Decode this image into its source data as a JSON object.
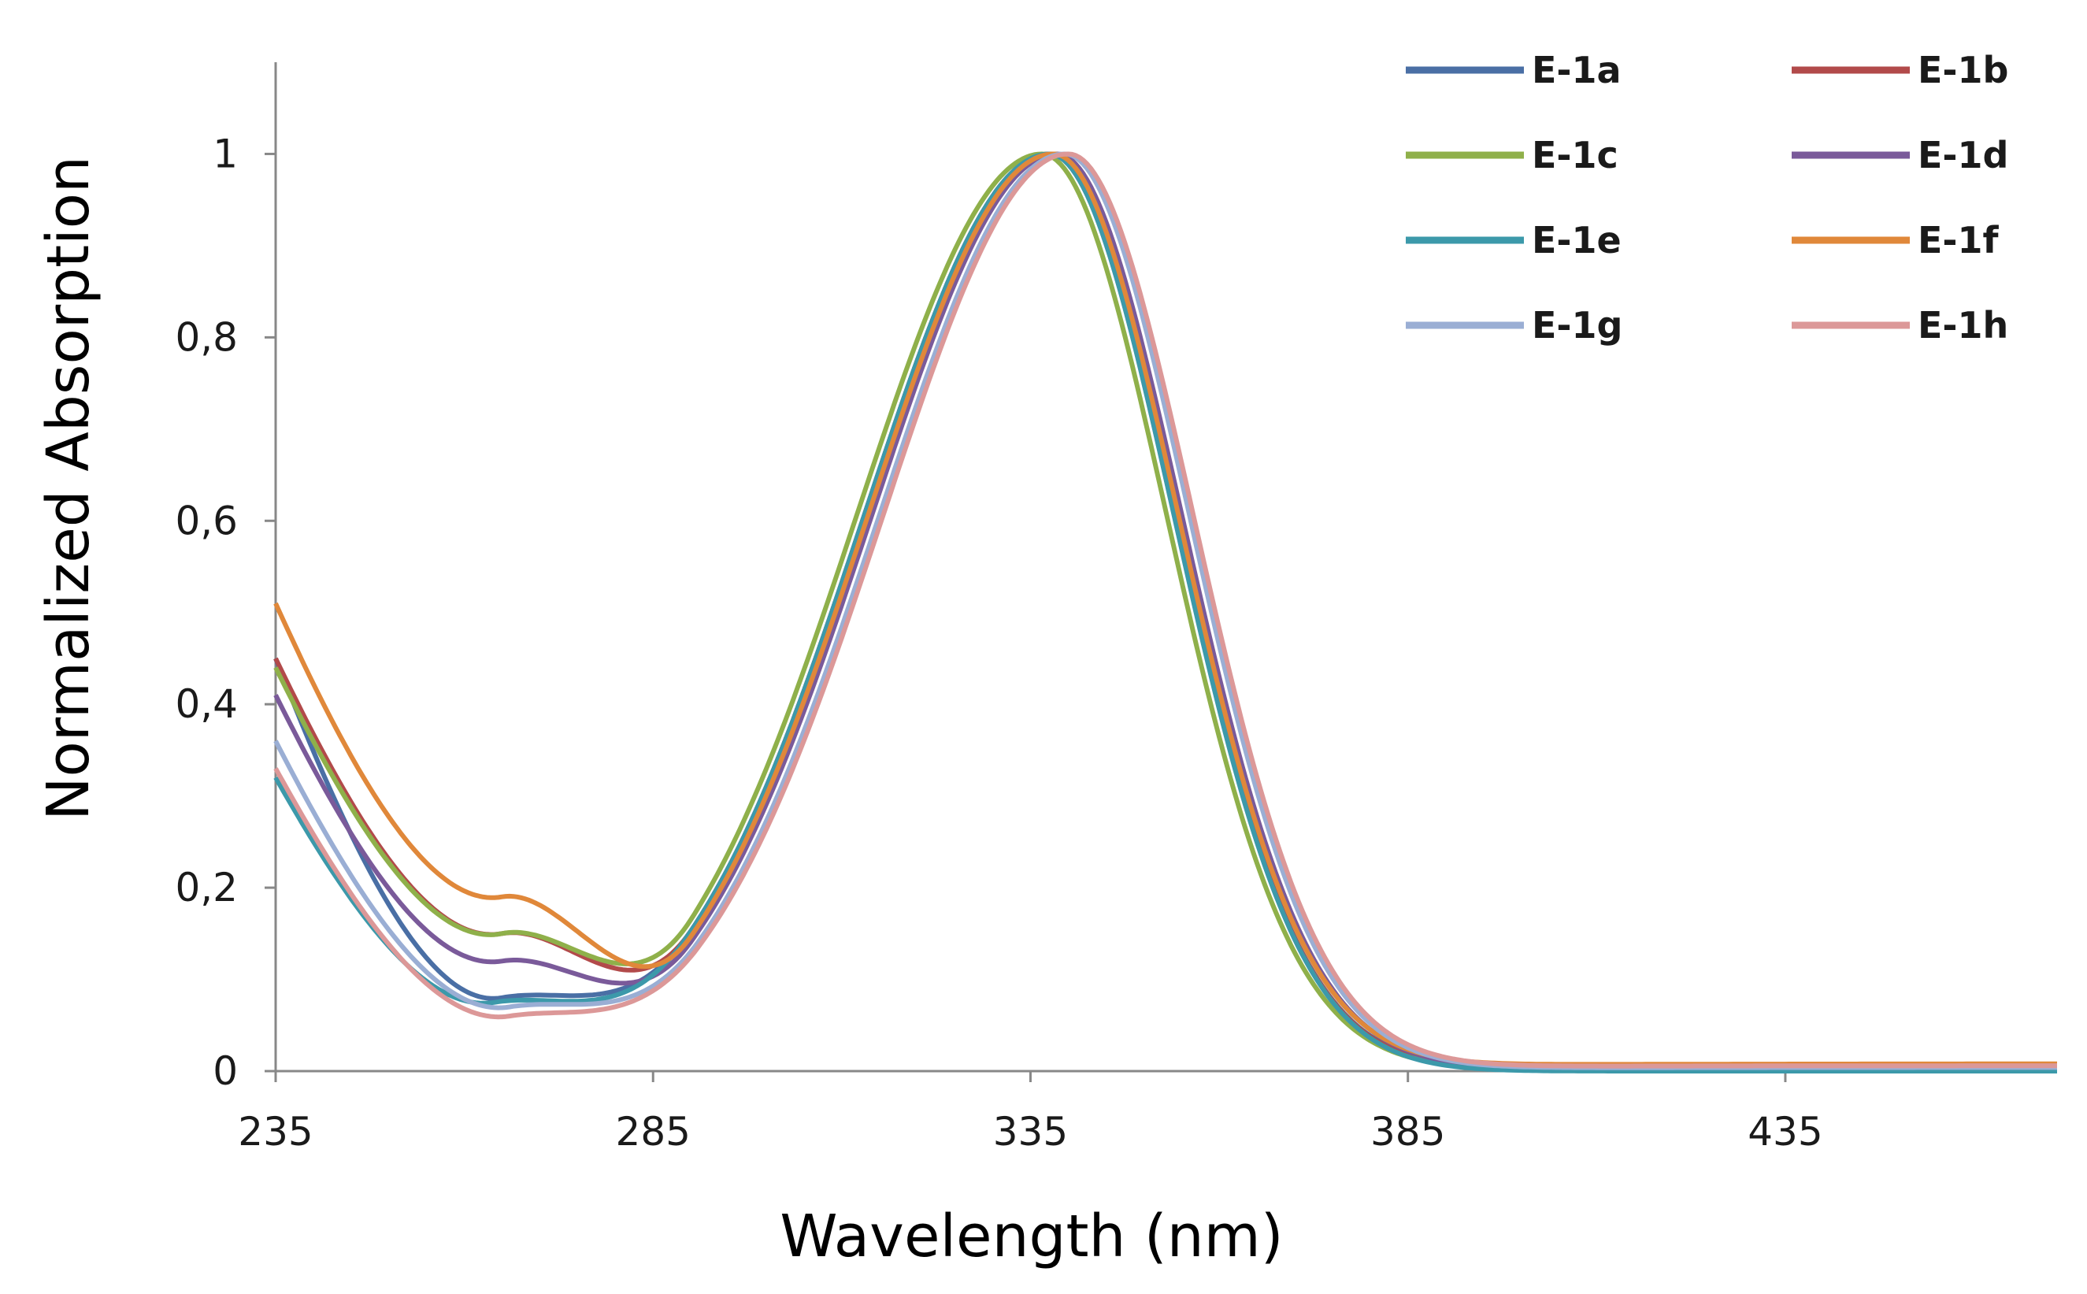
{
  "chart_data": {
    "type": "line",
    "title": "",
    "xlabel": "Wavelength (nm)",
    "ylabel": "Normalized Absorption",
    "xlim": [
      235,
      471
    ],
    "ylim": [
      0,
      1.1
    ],
    "xticks": [
      235,
      285,
      335,
      385,
      435
    ],
    "xtick_labels": [
      "235",
      "285",
      "335",
      "385",
      "435"
    ],
    "yticks": [
      0,
      0.2,
      0.4,
      0.6,
      0.8,
      1.0
    ],
    "ytick_labels": [
      "0",
      "0,2",
      "0,4",
      "0,6",
      "0,8",
      "1"
    ],
    "grid": false,
    "legend_position": "top-right",
    "series": [
      {
        "name": "E-1a",
        "color": "#4a6fa5",
        "peak": 337.5,
        "start": 0.45,
        "min_x": 265,
        "min_y": 0.08,
        "tail": 0.003
      },
      {
        "name": "E-1b",
        "color": "#b24a4a",
        "peak": 337.5,
        "start": 0.45,
        "min_x": 265,
        "min_y": 0.15,
        "tail": 0.002
      },
      {
        "name": "E-1c",
        "color": "#8fb04a",
        "peak": 336.5,
        "start": 0.44,
        "min_x": 265,
        "min_y": 0.15,
        "tail": 0.003
      },
      {
        "name": "E-1d",
        "color": "#7a5a9a",
        "peak": 338.5,
        "start": 0.41,
        "min_x": 265,
        "min_y": 0.12,
        "tail": 0.004
      },
      {
        "name": "E-1e",
        "color": "#3c99aa",
        "peak": 337.5,
        "start": 0.32,
        "min_x": 264,
        "min_y": 0.075,
        "tail": 0.0
      },
      {
        "name": "E-1f",
        "color": "#e0883a",
        "peak": 338.0,
        "start": 0.51,
        "min_x": 265,
        "min_y": 0.19,
        "tail": 0.008
      },
      {
        "name": "E-1g",
        "color": "#9aaed4",
        "peak": 339.5,
        "start": 0.36,
        "min_x": 266,
        "min_y": 0.07,
        "tail": 0.004
      },
      {
        "name": "E-1h",
        "color": "#dc9898",
        "peak": 340.0,
        "start": 0.33,
        "min_x": 266,
        "min_y": 0.06,
        "tail": 0.006
      }
    ]
  }
}
